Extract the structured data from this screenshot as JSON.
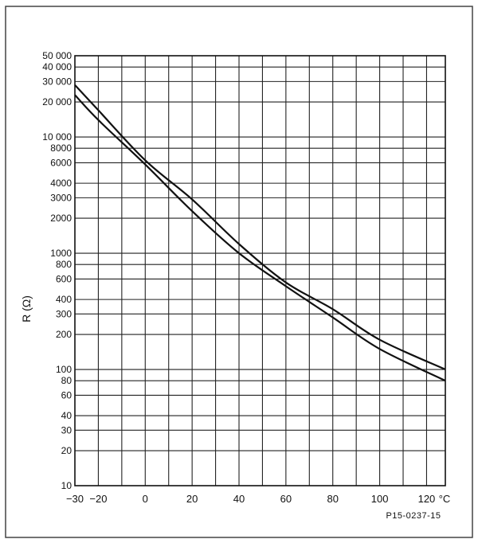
{
  "chart_data": {
    "type": "line",
    "title": "",
    "ylabel": "R (Ω)",
    "xunit": "°C",
    "reference": "P15-0237-15",
    "y_scale": "log",
    "xlim": [
      -30,
      128
    ],
    "ylim": [
      10,
      50000
    ],
    "grid": true,
    "x_ticks": [
      -30,
      -20,
      0,
      20,
      40,
      60,
      80,
      100,
      120
    ],
    "x_tick_labels": [
      "−30",
      "−20",
      "0",
      "20",
      "40",
      "60",
      "80",
      "100",
      "120"
    ],
    "y_ticks": [
      10,
      20,
      30,
      40,
      60,
      80,
      100,
      200,
      300,
      400,
      600,
      800,
      1000,
      2000,
      3000,
      4000,
      6000,
      8000,
      10000,
      20000,
      30000,
      40000,
      50000
    ],
    "y_tick_labels": [
      "10",
      "20",
      "30",
      "40",
      "60",
      "80",
      "100",
      "200",
      "300",
      "400",
      "600",
      "800",
      "1000",
      "2000",
      "3000",
      "4000",
      "6000",
      "8000",
      "10 000",
      "20 000",
      "30 000",
      "40 000",
      "50 000"
    ],
    "series": [
      {
        "x": [
          -30,
          -20,
          0,
          20,
          40,
          60,
          80,
          100,
          128
        ],
        "y": [
          28000,
          17000,
          6300,
          2900,
          1200,
          560,
          330,
          180,
          100
        ],
        "color": "#111111"
      },
      {
        "x": [
          -30,
          -20,
          0,
          20,
          40,
          60,
          80,
          100,
          128
        ],
        "y": [
          23000,
          14000,
          5800,
          2300,
          1000,
          520,
          280,
          150,
          80
        ],
        "color": "#111111"
      }
    ]
  }
}
